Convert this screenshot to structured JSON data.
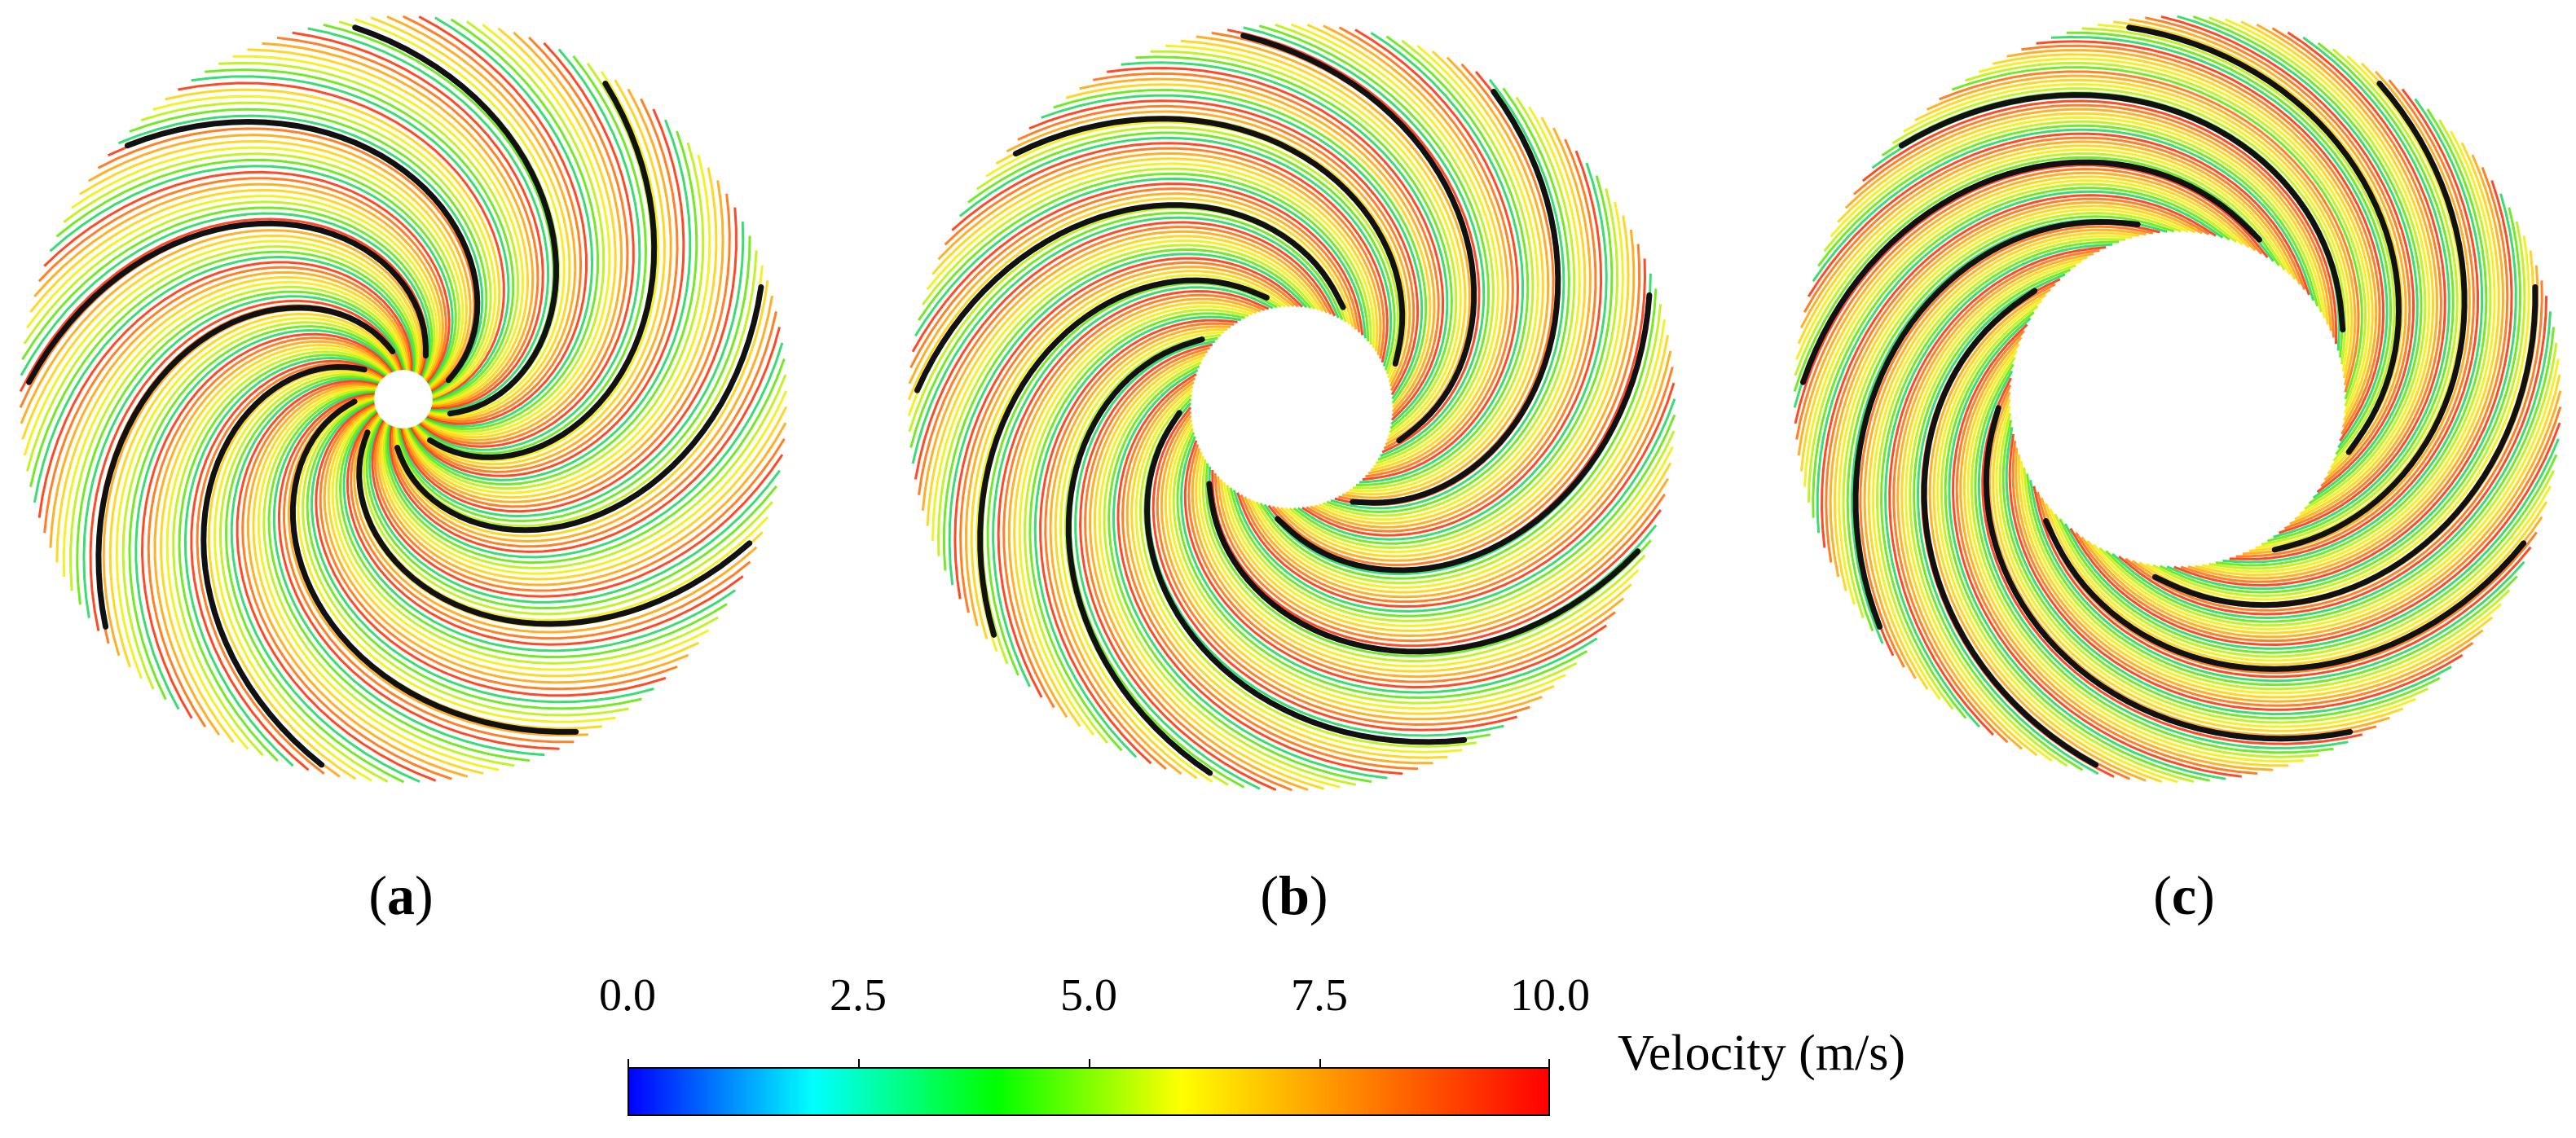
{
  "panels": [
    {
      "id": "a",
      "label": "a",
      "hub": "small"
    },
    {
      "id": "b",
      "label": "b",
      "hub": "medium"
    },
    {
      "id": "c",
      "label": "c",
      "hub": "large"
    }
  ],
  "colorbar": {
    "title": "Velocity (m/s)",
    "ticks": [
      "0.0",
      "2.5",
      "5.0",
      "7.5",
      "10.0"
    ],
    "range": [
      0,
      10
    ],
    "colors": [
      "#0000ff",
      "#00ffff",
      "#00ff00",
      "#ffff00",
      "#ff8000",
      "#ff0000"
    ]
  }
}
